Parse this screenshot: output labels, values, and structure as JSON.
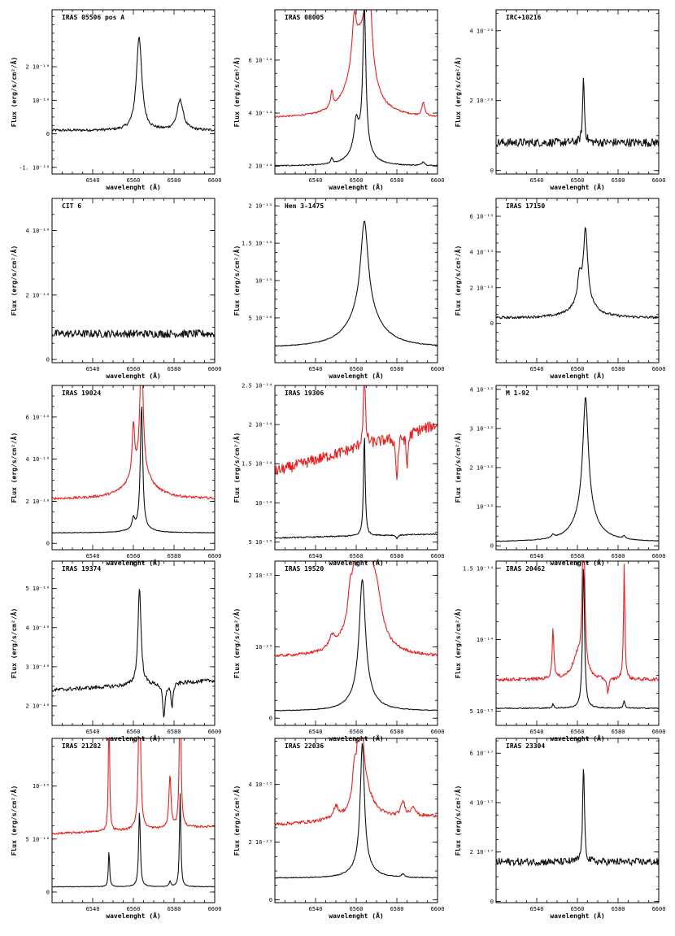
{
  "labels": {
    "xlabel": "wavelenght (Å)",
    "ylabel": "Flux (erg/s/cm²/Å)"
  },
  "colors": {
    "black": "#111111",
    "red": "#e8201e"
  },
  "chart_data": [
    {
      "type": "line",
      "title": "IRAS 05506 pos A",
      "xlim": [
        6520,
        6600
      ],
      "ylim": [
        -1.2e-16,
        3.7e-16
      ],
      "yticks": [
        {
          "v": -1e-16,
          "label": "-1. 10⁻¹⁶"
        },
        {
          "v": 0,
          "label": "0"
        },
        {
          "v": 1e-16,
          "label": "10⁻¹⁶"
        },
        {
          "v": 2e-16,
          "label": "2 10⁻¹⁶"
        }
      ],
      "series": [
        {
          "color": "black",
          "base": 1e-17,
          "noise": 4e-18,
          "peaks": [
            [
              6562.8,
              2.8e-16,
              1.6
            ],
            [
              6583,
              9e-17,
              1.8
            ]
          ]
        }
      ]
    },
    {
      "type": "line",
      "title": "IRAS 08005",
      "xlim": [
        6520,
        6600
      ],
      "ylim": [
        1.7e-14,
        7.9e-14
      ],
      "yticks": [
        {
          "v": 2e-14,
          "label": "2 10⁻¹⁴"
        },
        {
          "v": 4e-14,
          "label": "4 10⁻¹⁴"
        },
        {
          "v": 6e-14,
          "label": "6 10⁻¹⁴"
        }
      ],
      "series": [
        {
          "color": "red",
          "base": 3.8e-14,
          "noise": 3e-16,
          "peaks": [
            [
              6566,
              4.5e-14,
              1.5
            ],
            [
              6559,
              1.6e-14,
              1.2
            ],
            [
              6562,
              2.8e-14,
              6
            ],
            [
              6548,
              6e-15,
              0.7
            ],
            [
              6593,
              5e-15,
              0.8
            ]
          ]
        },
        {
          "color": "black",
          "base": 2e-14,
          "noise": 2e-16,
          "peaks": [
            [
              6564,
              5.3e-14,
              0.9
            ],
            [
              6560,
              1e-14,
              1.2
            ],
            [
              6562,
              8e-15,
              5
            ],
            [
              6548,
              2e-15,
              0.6
            ],
            [
              6593,
              1.5e-15,
              0.8
            ]
          ]
        }
      ]
    },
    {
      "type": "line",
      "title": "IRC+10216",
      "xlim": [
        6520,
        6600
      ],
      "ylim": [
        -1e-21,
        4.6e-20
      ],
      "yticks": [
        {
          "v": 0,
          "label": "0"
        },
        {
          "v": 2e-20,
          "label": "2 10⁻²⁰"
        },
        {
          "v": 4e-20,
          "label": "4 10⁻²⁰"
        }
      ],
      "series": [
        {
          "color": "black",
          "base": 8e-21,
          "noise": 1.2e-21,
          "peaks": [
            [
              6563,
              1.9e-20,
              0.5
            ]
          ]
        }
      ]
    },
    {
      "type": "line",
      "title": "CIT 6",
      "xlim": [
        6520,
        6600
      ],
      "ylim": [
        -1e-15,
        5e-14
      ],
      "yticks": [
        {
          "v": 0,
          "label": "0"
        },
        {
          "v": 2e-14,
          "label": "2 10⁻¹⁴"
        },
        {
          "v": 4e-14,
          "label": "4 10⁻¹⁴"
        }
      ],
      "series": [
        {
          "color": "black",
          "base": 8e-15,
          "noise": 1.2e-15,
          "peaks": []
        }
      ]
    },
    {
      "type": "line",
      "title": "Hen 3-1475",
      "xlim": [
        6520,
        6600
      ],
      "ylim": [
        -1e-16,
        2.1e-15
      ],
      "yticks": [
        {
          "v": 5e-16,
          "label": "5 10⁻¹⁶"
        },
        {
          "v": 1e-15,
          "label": "10⁻¹⁵"
        },
        {
          "v": 1.5e-15,
          "label": "1.5 10⁻¹⁵"
        },
        {
          "v": 2e-15,
          "label": "2 10⁻¹⁵"
        }
      ],
      "series": [
        {
          "color": "black",
          "base": 1e-16,
          "noise": 5e-18,
          "peaks": [
            [
              6564,
              1.2e-15,
              2.2
            ],
            [
              6564,
              5e-16,
              9
            ]
          ]
        }
      ]
    },
    {
      "type": "line",
      "title": "IRAS 17150",
      "xlim": [
        6520,
        6600
      ],
      "ylim": [
        -2.2e-15,
        7e-15
      ],
      "yticks": [
        {
          "v": 0,
          "label": "0"
        },
        {
          "v": 2e-15,
          "label": "2 10⁻¹⁵"
        },
        {
          "v": 4e-15,
          "label": "4 10⁻¹⁵"
        },
        {
          "v": 6e-15,
          "label": "6 10⁻¹⁵"
        }
      ],
      "series": [
        {
          "color": "black",
          "base": 3e-16,
          "noise": 7e-17,
          "peaks": [
            [
              6564,
              4e-15,
              1.2
            ],
            [
              6561,
              1.4e-15,
              1.0
            ],
            [
              6563,
              1e-15,
              6
            ]
          ]
        }
      ]
    },
    {
      "type": "line",
      "title": "IRAS 19024",
      "xlim": [
        6520,
        6600
      ],
      "ylim": [
        -3e-17,
        7.5e-16
      ],
      "yticks": [
        {
          "v": 0,
          "label": "0"
        },
        {
          "v": 2e-16,
          "label": "2 10⁻¹⁶"
        },
        {
          "v": 4e-16,
          "label": "4 10⁻¹⁶"
        },
        {
          "v": 6e-16,
          "label": "6 10⁻¹⁶"
        }
      ],
      "series": [
        {
          "color": "red",
          "base": 2.1e-16,
          "noise": 6e-18,
          "peaks": [
            [
              6564,
              6e-16,
              0.9
            ],
            [
              6560,
              2.4e-16,
              0.7
            ],
            [
              6563,
              1.3e-16,
              7
            ]
          ]
        },
        {
          "color": "black",
          "base": 5e-17,
          "noise": 1.5e-18,
          "peaks": [
            [
              6564,
              5.9e-16,
              0.7
            ],
            [
              6560,
              5e-17,
              0.7
            ],
            [
              6563,
              2e-17,
              6
            ]
          ]
        }
      ]
    },
    {
      "type": "line",
      "title": "IRAS 19306",
      "xlim": [
        6520,
        6600
      ],
      "ylim": [
        4e-15,
        2.5e-14
      ],
      "yticks": [
        {
          "v": 5e-15,
          "label": "5 10⁻¹⁵"
        },
        {
          "v": 1e-14,
          "label": "10⁻¹⁴"
        },
        {
          "v": 1.5e-14,
          "label": "1.5 10⁻¹⁴"
        },
        {
          "v": 2e-14,
          "label": "2 10⁻¹⁴"
        },
        {
          "v": 2.5e-14,
          "label": "2.5 10⁻¹⁴"
        }
      ],
      "series": [
        {
          "color": "red",
          "base": 1.4e-14,
          "noise": 7e-16,
          "slope": 6e-15,
          "peaks": [
            [
              6564,
              9e-15,
              0.6
            ],
            [
              6580,
              -5.5e-15,
              0.6
            ],
            [
              6585,
              -4.5e-15,
              0.5
            ]
          ]
        },
        {
          "color": "black",
          "base": 5.5e-15,
          "noise": 8e-17,
          "slope": 5e-16,
          "peaks": [
            [
              6564,
              1.3e-14,
              0.5
            ],
            [
              6580,
              -5e-16,
              0.5
            ]
          ]
        }
      ]
    },
    {
      "type": "line",
      "title": "M 1-92",
      "xlim": [
        6520,
        6600
      ],
      "ylim": [
        -1e-16,
        4.1e-15
      ],
      "yticks": [
        {
          "v": 0,
          "label": "0"
        },
        {
          "v": 1e-15,
          "label": "10⁻¹⁵"
        },
        {
          "v": 2e-15,
          "label": "2 10⁻¹⁵"
        },
        {
          "v": 3e-15,
          "label": "3 10⁻¹⁵"
        },
        {
          "v": 4e-15,
          "label": "4 10⁻¹⁵"
        }
      ],
      "series": [
        {
          "color": "black",
          "base": 1e-16,
          "noise": 8e-18,
          "peaks": [
            [
              6564,
              2.9e-15,
              1.6
            ],
            [
              6564,
              8e-16,
              6
            ],
            [
              6583,
              7e-17,
              0.8
            ],
            [
              6548,
              8e-17,
              0.8
            ]
          ]
        }
      ]
    },
    {
      "type": "line",
      "title": "IRAS 19374",
      "xlim": [
        6520,
        6600
      ],
      "ylim": [
        1.5e-16,
        5.7e-16
      ],
      "yticks": [
        {
          "v": 2e-16,
          "label": "2 10⁻¹⁶"
        },
        {
          "v": 3e-16,
          "label": "3 10⁻¹⁶"
        },
        {
          "v": 4e-16,
          "label": "4 10⁻¹⁶"
        },
        {
          "v": 5e-16,
          "label": "5 10⁻¹⁶"
        }
      ],
      "series": [
        {
          "color": "black",
          "base": 2.4e-16,
          "noise": 5e-18,
          "slope": 2.5e-17,
          "peaks": [
            [
              6563,
              2.5e-16,
              0.9
            ],
            [
              6575,
              -9e-17,
              0.7
            ],
            [
              6579,
              -6e-17,
              0.6
            ]
          ]
        }
      ]
    },
    {
      "type": "line",
      "title": "IRAS 19520",
      "xlim": [
        6520,
        6600
      ],
      "ylim": [
        -1e-16,
        2.2e-15
      ],
      "yticks": [
        {
          "v": 0,
          "label": "0"
        },
        {
          "v": 1e-15,
          "label": "10⁻¹⁵"
        },
        {
          "v": 2e-15,
          "label": "2 10⁻¹⁵"
        }
      ],
      "series": [
        {
          "color": "red",
          "base": 8.5e-16,
          "noise": 2e-17,
          "peaks": [
            [
              6563,
              2.6e-15,
              4
            ],
            [
              6557,
              3e-16,
              1.0
            ],
            [
              6548,
              1.5e-16,
              1.5
            ],
            [
              6570,
              5e-16,
              3
            ]
          ]
        },
        {
          "color": "black",
          "base": 1e-16,
          "noise": 5e-18,
          "peaks": [
            [
              6563,
              1.6e-15,
              1.8
            ],
            [
              6563,
              2.5e-16,
              6
            ]
          ]
        }
      ]
    },
    {
      "type": "line",
      "title": "IRAS 20462",
      "xlim": [
        6520,
        6600
      ],
      "ylim": [
        4e-15,
        1.55e-14
      ],
      "yticks": [
        {
          "v": 5e-15,
          "label": "5 10⁻¹⁵"
        },
        {
          "v": 1e-14,
          "label": "10⁻¹⁴"
        },
        {
          "v": 1.5e-14,
          "label": "1.5 10⁻¹⁴"
        }
      ],
      "series": [
        {
          "color": "red",
          "base": 7.2e-15,
          "noise": 1.2e-16,
          "peaks": [
            [
              6563,
              1.1e-14,
              0.7
            ],
            [
              6548,
              3.5e-15,
              0.5
            ],
            [
              6583,
              8e-15,
              0.4
            ],
            [
              6560,
              1.5e-15,
              3
            ],
            [
              6575,
              -1e-15,
              0.6
            ]
          ]
        },
        {
          "color": "black",
          "base": 5.2e-15,
          "noise": 4e-17,
          "peaks": [
            [
              6563,
              1e-14,
              0.6
            ],
            [
              6583,
              5e-16,
              0.5
            ],
            [
              6548,
              3e-16,
              0.4
            ]
          ]
        }
      ]
    },
    {
      "type": "line",
      "title": "IRAS 21282",
      "xlim": [
        6520,
        6600
      ],
      "ylim": [
        -1e-16,
        1.45e-15
      ],
      "yticks": [
        {
          "v": 0,
          "label": "0"
        },
        {
          "v": 5e-16,
          "label": "5 10⁻¹⁶"
        },
        {
          "v": 1e-15,
          "label": "10⁻¹⁵"
        }
      ],
      "series": [
        {
          "color": "red",
          "base": 5.5e-16,
          "noise": 1e-17,
          "slope": 7e-17,
          "peaks": [
            [
              6548,
              1.2e-15,
              0.35
            ],
            [
              6563,
              1.5e-15,
              0.6
            ],
            [
              6578,
              5e-16,
              0.6
            ],
            [
              6583,
              1.5e-15,
              0.45
            ]
          ]
        },
        {
          "color": "black",
          "base": 5e-17,
          "noise": 3e-18,
          "peaks": [
            [
              6548,
              3.5e-16,
              0.35
            ],
            [
              6563,
              7.2e-16,
              0.5
            ],
            [
              6578,
              5e-17,
              0.5
            ],
            [
              6583,
              8.8e-16,
              0.4
            ]
          ]
        }
      ]
    },
    {
      "type": "line",
      "title": "IRAS 22036",
      "xlim": [
        6520,
        6600
      ],
      "ylim": [
        -1e-16,
        5.6e-15
      ],
      "yticks": [
        {
          "v": 0,
          "label": "0"
        },
        {
          "v": 2e-15,
          "label": "2 10⁻¹⁵"
        },
        {
          "v": 4e-15,
          "label": "4 10⁻¹⁵"
        }
      ],
      "series": [
        {
          "color": "red",
          "base": 2.6e-15,
          "noise": 6e-17,
          "slope": 3e-16,
          "peaks": [
            [
              6562,
              4e-15,
              1.4
            ],
            [
              6559,
              1e-15,
              1.0
            ],
            [
              6564,
              9e-16,
              5
            ],
            [
              6550,
              4e-16,
              1.5
            ],
            [
              6583,
              5e-16,
              1.2
            ],
            [
              6588,
              3.5e-16,
              1.2
            ]
          ]
        },
        {
          "color": "black",
          "base": 7.5e-16,
          "noise": 1.5e-17,
          "peaks": [
            [
              6563,
              4.2e-15,
              1.2
            ],
            [
              6563,
              5e-16,
              5
            ],
            [
              6583,
              1e-16,
              1.0
            ]
          ]
        }
      ]
    },
    {
      "type": "line",
      "title": "IRAS 23304",
      "xlim": [
        6520,
        6600
      ],
      "ylim": [
        -5e-19,
        6.6e-17
      ],
      "yticks": [
        {
          "v": 0,
          "label": "0"
        },
        {
          "v": 2e-17,
          "label": "2 10⁻¹⁷"
        },
        {
          "v": 4e-17,
          "label": "4 10⁻¹⁷"
        },
        {
          "v": 6e-17,
          "label": "6 10⁻¹⁷"
        }
      ],
      "series": [
        {
          "color": "black",
          "base": 1.6e-17,
          "noise": 1.5e-18,
          "peaks": [
            [
              6563,
              4e-17,
              0.5
            ]
          ]
        }
      ]
    }
  ]
}
